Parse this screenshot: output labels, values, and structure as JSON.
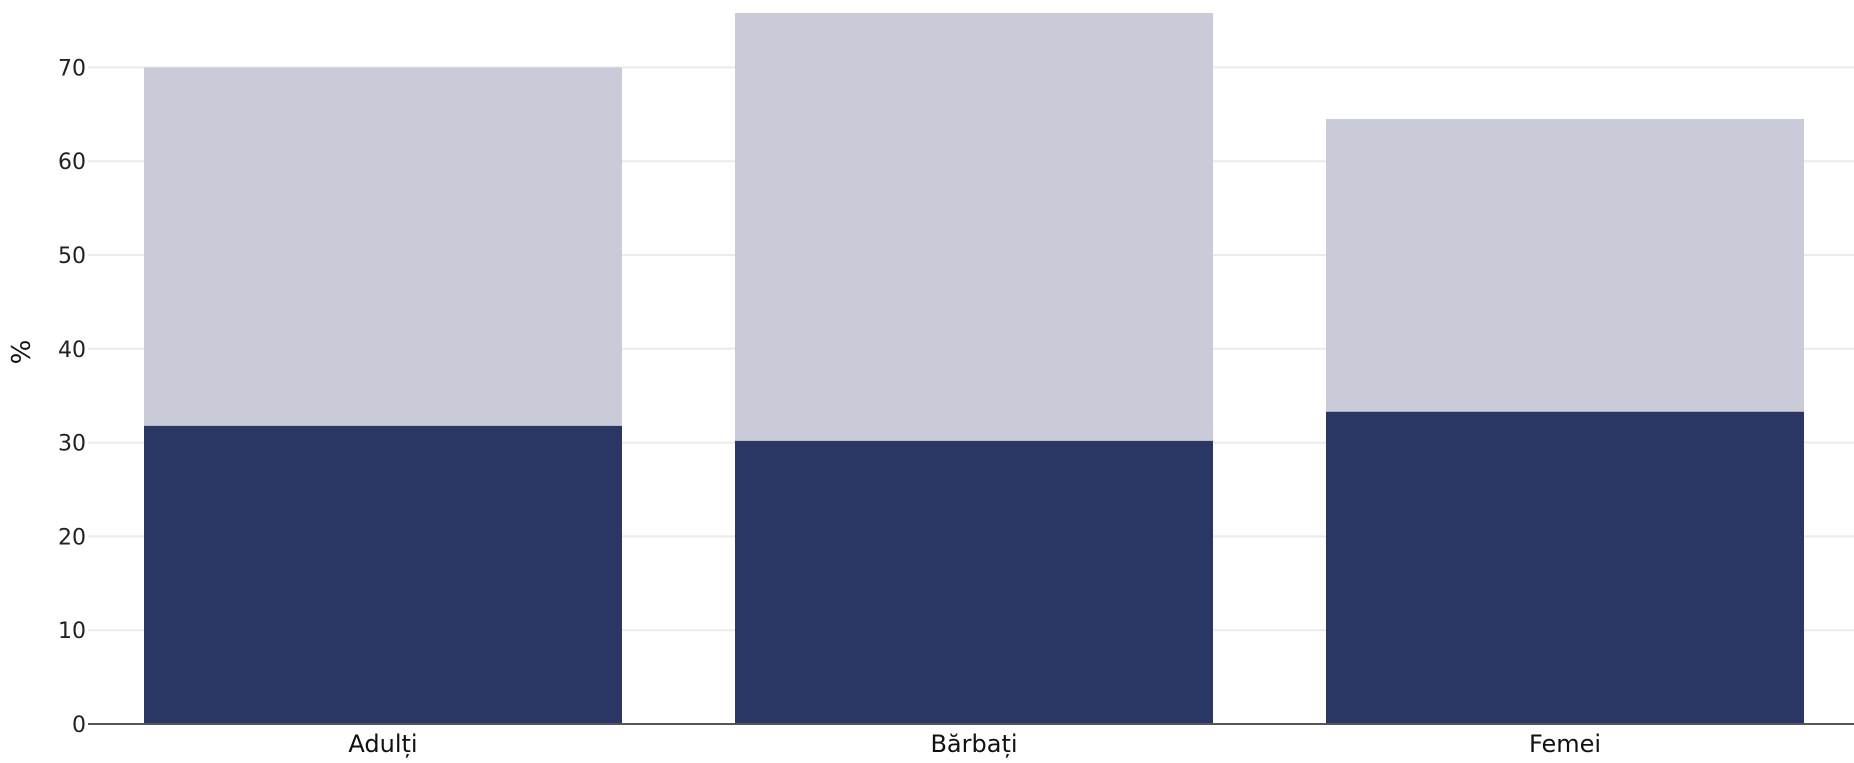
{
  "chart_data": {
    "type": "bar",
    "stacked": true,
    "categories": [
      "Adulți",
      "Bărbați",
      "Femei"
    ],
    "series": [
      {
        "values": [
          31.8,
          30.2,
          33.3
        ],
        "color": "#2a3663"
      },
      {
        "values": [
          38.2,
          45.6,
          31.2
        ],
        "color": "#cacbd8"
      }
    ],
    "xlabel": "",
    "ylabel": "%",
    "yticks": [
      0,
      10,
      20,
      30,
      40,
      50,
      60,
      70
    ],
    "ylim": [
      0,
      76
    ],
    "grid": true,
    "legend": "none"
  },
  "colors": {
    "grid": "#ebebeb",
    "axis_line": "#555555"
  }
}
